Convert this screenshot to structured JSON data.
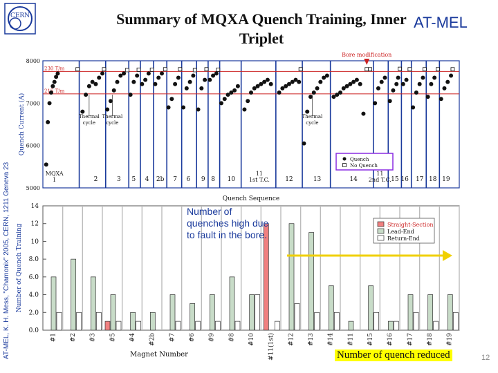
{
  "slide": {
    "title": "Summary of MQXA Quench Training, Inner Triplet",
    "org": "AT-MEL",
    "side_text": "AT-MEL, K. H. Mess, \"Chamonix\" 2005, CERN, 1211 Geneva 23",
    "logo_text": "CERN",
    "page_number": "12",
    "annotation": "Number of quenches high due to fault in the bore.",
    "callout": "Number of quench reduced"
  },
  "colors": {
    "accent": "#1a3a9c",
    "highlight": "#ffff00",
    "arrow": "#f0d000",
    "straight": "#f08080",
    "lead": "#c8dcc8",
    "ret": "#ffffff",
    "ref": "#cc2222",
    "legend_box": "#8a2be2"
  },
  "chart_data": [
    {
      "type": "scatter",
      "ylabel": "Quench Current (A)",
      "xlabel": "Quench Sequence",
      "ylim": [
        5000,
        8000
      ],
      "yticks": [
        "8000",
        "7000",
        "6000",
        "5000"
      ],
      "reference_lines": [
        {
          "label": "230 T/m",
          "value": 7750
        },
        {
          "label": "215 T/m",
          "value": 7220
        }
      ],
      "top_annotation": "Bore modification",
      "cycle_labels": [
        {
          "label": "Thermal cycle",
          "x": 28
        },
        {
          "label": "Thermal cycle",
          "x": 42
        },
        {
          "label": "Thermal cycle",
          "x": 163
        }
      ],
      "group_labels": [
        {
          "label": "MQXA 1",
          "x": 7
        },
        {
          "label": "2",
          "x": 32
        },
        {
          "label": "3",
          "x": 46
        },
        {
          "label": "5",
          "x": 55
        },
        {
          "label": "4",
          "x": 63
        },
        {
          "label": "2b",
          "x": 71
        },
        {
          "label": "7",
          "x": 80
        },
        {
          "label": "6",
          "x": 88
        },
        {
          "label": "9",
          "x": 97
        },
        {
          "label": "8",
          "x": 103
        },
        {
          "label": "10",
          "x": 114
        },
        {
          "label": "11 1st T.C.",
          "x": 131
        },
        {
          "label": "12",
          "x": 149
        },
        {
          "label": "13",
          "x": 166
        },
        {
          "label": "14",
          "x": 188
        },
        {
          "label": "11 2nd T.C.",
          "x": 204
        },
        {
          "label": "15",
          "x": 213
        },
        {
          "label": "16",
          "x": 219
        },
        {
          "label": "17",
          "x": 228
        },
        {
          "label": "18",
          "x": 236
        },
        {
          "label": "19",
          "x": 244
        }
      ],
      "group_dividers": [
        22,
        38,
        52,
        59,
        67,
        75,
        84,
        93,
        100,
        107,
        120,
        141,
        157,
        174,
        200,
        209,
        217,
        223,
        232,
        240
      ],
      "legend": [
        {
          "label": "Quench",
          "marker": "dot"
        },
        {
          "label": "No Quench",
          "marker": "square"
        }
      ],
      "series": [
        {
          "name": "Quench",
          "points": [
            [
              2,
              5550
            ],
            [
              3,
              6550
            ],
            [
              4,
              7000
            ],
            [
              5,
              7250
            ],
            [
              6,
              7400
            ],
            [
              7,
              7500
            ],
            [
              8,
              7620
            ],
            [
              9,
              7700
            ],
            [
              24,
              6800
            ],
            [
              26,
              7200
            ],
            [
              28,
              7400
            ],
            [
              30,
              7500
            ],
            [
              32,
              7450
            ],
            [
              34,
              7600
            ],
            [
              36,
              7700
            ],
            [
              39,
              6850
            ],
            [
              41,
              7050
            ],
            [
              43,
              7300
            ],
            [
              45,
              7500
            ],
            [
              47,
              7650
            ],
            [
              49,
              7700
            ],
            [
              53,
              7200
            ],
            [
              55,
              7500
            ],
            [
              57,
              7650
            ],
            [
              60,
              7450
            ],
            [
              62,
              7550
            ],
            [
              64,
              7700
            ],
            [
              68,
              7450
            ],
            [
              70,
              7600
            ],
            [
              72,
              7700
            ],
            [
              76,
              6900
            ],
            [
              78,
              7100
            ],
            [
              80,
              7450
            ],
            [
              82,
              7600
            ],
            [
              85,
              6900
            ],
            [
              87,
              7350
            ],
            [
              89,
              7500
            ],
            [
              91,
              7650
            ],
            [
              94,
              6850
            ],
            [
              96,
              7350
            ],
            [
              98,
              7550
            ],
            [
              101,
              7550
            ],
            [
              103,
              7650
            ],
            [
              105,
              7700
            ],
            [
              108,
              7000
            ],
            [
              110,
              7100
            ],
            [
              112,
              7200
            ],
            [
              114,
              7250
            ],
            [
              116,
              7300
            ],
            [
              118,
              7400
            ],
            [
              122,
              6850
            ],
            [
              124,
              7050
            ],
            [
              126,
              7250
            ],
            [
              128,
              7350
            ],
            [
              130,
              7400
            ],
            [
              132,
              7450
            ],
            [
              134,
              7500
            ],
            [
              136,
              7550
            ],
            [
              138,
              7450
            ],
            [
              143,
              7250
            ],
            [
              145,
              7350
            ],
            [
              147,
              7400
            ],
            [
              149,
              7450
            ],
            [
              151,
              7500
            ],
            [
              153,
              7550
            ],
            [
              155,
              7500
            ],
            [
              158,
              6050
            ],
            [
              160,
              6800
            ],
            [
              162,
              7150
            ],
            [
              164,
              7250
            ],
            [
              166,
              7350
            ],
            [
              168,
              7500
            ],
            [
              170,
              7600
            ],
            [
              172,
              7650
            ],
            [
              176,
              7150
            ],
            [
              178,
              7200
            ],
            [
              180,
              7250
            ],
            [
              182,
              7350
            ],
            [
              184,
              7400
            ],
            [
              186,
              7450
            ],
            [
              188,
              7500
            ],
            [
              190,
              7550
            ],
            [
              192,
              7450
            ],
            [
              194,
              6750
            ],
            [
              201,
              7000
            ],
            [
              203,
              7350
            ],
            [
              205,
              7500
            ],
            [
              207,
              7600
            ],
            [
              210,
              7050
            ],
            [
              212,
              7300
            ],
            [
              214,
              7450
            ],
            [
              215,
              7600
            ],
            [
              218,
              7450
            ],
            [
              220,
              7550
            ],
            [
              224,
              6900
            ],
            [
              226,
              7250
            ],
            [
              228,
              7450
            ],
            [
              230,
              7600
            ],
            [
              233,
              7150
            ],
            [
              235,
              7450
            ],
            [
              237,
              7600
            ],
            [
              241,
              7100
            ],
            [
              243,
              7350
            ],
            [
              245,
              7500
            ],
            [
              247,
              7650
            ]
          ]
        },
        {
          "name": "No Quench",
          "points": [
            [
              21,
              7800
            ],
            [
              37,
              7800
            ],
            [
              51,
              7780
            ],
            [
              58,
              7790
            ],
            [
              66,
              7790
            ],
            [
              74,
              7800
            ],
            [
              83,
              7800
            ],
            [
              92,
              7780
            ],
            [
              99,
              7800
            ],
            [
              106,
              7790
            ],
            [
              156,
              7800
            ],
            [
              196,
              7800
            ],
            [
              198,
              7800
            ],
            [
              216,
              7810
            ],
            [
              222,
              7800
            ],
            [
              231,
              7800
            ],
            [
              239,
              7800
            ],
            [
              248,
              7800
            ]
          ]
        }
      ],
      "xrange": [
        0,
        252
      ]
    },
    {
      "type": "bar",
      "ylabel": "Number of Quench Training",
      "xlabel": "Magnet Number",
      "ylim": [
        0,
        14
      ],
      "yticks": [
        "0.0",
        "2.0",
        "4.0",
        "6.0",
        "8.0",
        "10",
        "12",
        "14"
      ],
      "categories": [
        "#1",
        "#2",
        "#3",
        "#5",
        "#4",
        "#2b",
        "#7",
        "#6",
        "#9",
        "#8",
        "#10",
        "#11(1st)",
        "#12",
        "#13",
        "#14",
        "#11",
        "#15",
        "#16",
        "#17",
        "#18",
        "#19"
      ],
      "legend": [
        "Straight-Section",
        "Lead-End",
        "Return-End"
      ],
      "series": [
        {
          "name": "Straight-Section",
          "values": [
            0,
            0,
            0,
            1,
            0,
            0,
            0,
            0,
            0,
            0,
            0,
            12,
            0,
            0,
            0,
            0,
            0,
            0,
            0,
            0,
            0
          ]
        },
        {
          "name": "Lead-End",
          "values": [
            6,
            8,
            6,
            4,
            2,
            2,
            4,
            3,
            4,
            6,
            4,
            0,
            12,
            11,
            5,
            1,
            5,
            1,
            4,
            4,
            4
          ]
        },
        {
          "name": "Return-End",
          "values": [
            2,
            2,
            2,
            1,
            1,
            0,
            1,
            1,
            1,
            1,
            4,
            1,
            3,
            2,
            2,
            0,
            2,
            1,
            2,
            1,
            2
          ]
        }
      ]
    }
  ]
}
